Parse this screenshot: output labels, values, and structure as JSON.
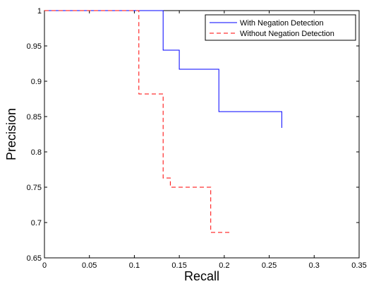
{
  "chart_data": {
    "type": "line",
    "xlabel": "Recall",
    "ylabel": "Precision",
    "xlim": [
      0,
      0.35
    ],
    "ylim": [
      0.65,
      1
    ],
    "x_ticks": [
      "0",
      "0.05",
      "0.1",
      "0.15",
      "0.2",
      "0.25",
      "0.3",
      "0.35"
    ],
    "y_ticks": [
      "0.65",
      "0.7",
      "0.75",
      "0.8",
      "0.85",
      "0.9",
      "0.95",
      "1"
    ],
    "x_tick_values": [
      0,
      0.05,
      0.1,
      0.15,
      0.2,
      0.25,
      0.3,
      0.35
    ],
    "y_tick_values": [
      0.65,
      0.7,
      0.75,
      0.8,
      0.85,
      0.9,
      0.95,
      1
    ],
    "grid": false,
    "legend_position": "top-right",
    "series": [
      {
        "name": "With Negation Detection",
        "color": "#0000ff",
        "line_style": "solid",
        "x": [
          0,
          0.132,
          0.132,
          0.15,
          0.15,
          0.194,
          0.194,
          0.264,
          0.264
        ],
        "y": [
          1,
          1,
          0.944,
          0.944,
          0.917,
          0.917,
          0.857,
          0.857,
          0.834
        ]
      },
      {
        "name": "Without Negation Detection",
        "color": "#ff0000",
        "line_style": "dashed",
        "x": [
          0,
          0.105,
          0.105,
          0.132,
          0.132,
          0.14,
          0.14,
          0.185,
          0.185,
          0.207
        ],
        "y": [
          1,
          1,
          0.882,
          0.882,
          0.763,
          0.763,
          0.75,
          0.75,
          0.686,
          0.686
        ]
      }
    ]
  }
}
